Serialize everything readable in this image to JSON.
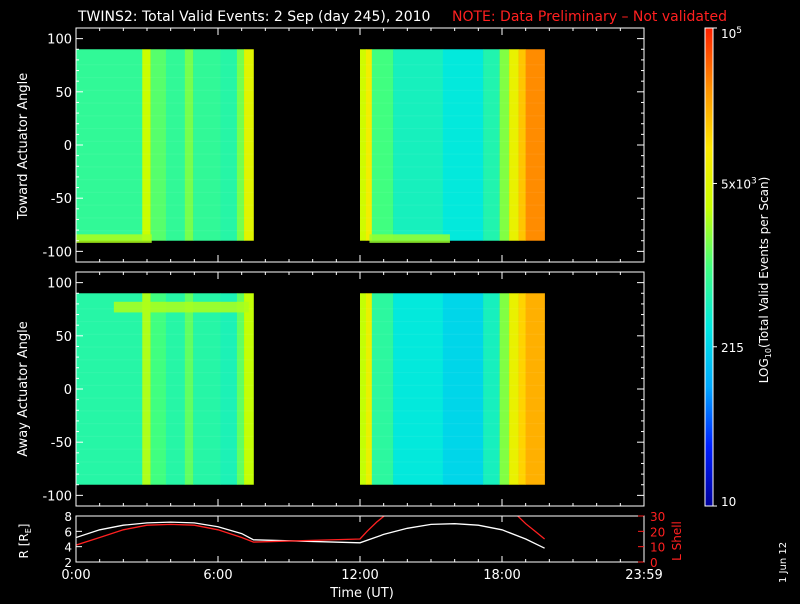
{
  "title": {
    "main": "TWINS2: Total Valid Events:  2 Sep (day 245), 2010",
    "note": "NOTE: Data Preliminary – Not validated",
    "note_color": "#ff2020"
  },
  "side_date": "1 Jun 12",
  "chart_data": [
    {
      "id": "toward",
      "type": "heatmap",
      "ylabel": "Toward Actuator Angle",
      "ylim": [
        -110,
        110
      ],
      "yticks": [
        -100,
        -50,
        0,
        50,
        100
      ],
      "xlim_hours": [
        0,
        24
      ],
      "data_y": [
        -90,
        90
      ],
      "data_blocks": [
        [
          0,
          7.5
        ],
        [
          12,
          19.8
        ]
      ],
      "columns": [
        {
          "t": [
            0,
            2.8
          ],
          "level": 0.47
        },
        {
          "t": [
            2.8,
            3.15
          ],
          "level": 0.63
        },
        {
          "t": [
            3.15,
            3.8
          ],
          "level": 0.52
        },
        {
          "t": [
            3.8,
            4.6
          ],
          "level": 0.47
        },
        {
          "t": [
            4.6,
            4.95
          ],
          "level": 0.55
        },
        {
          "t": [
            4.95,
            6.1
          ],
          "level": 0.47
        },
        {
          "t": [
            6.1,
            6.8
          ],
          "level": 0.45
        },
        {
          "t": [
            6.8,
            7.1
          ],
          "level": 0.55
        },
        {
          "t": [
            7.1,
            7.5
          ],
          "level": 0.68
        },
        {
          "t": [
            12,
            12.25
          ],
          "level": 0.64
        },
        {
          "t": [
            12.25,
            12.5
          ],
          "level": 0.72
        },
        {
          "t": [
            12.5,
            13.4
          ],
          "level": 0.5
        },
        {
          "t": [
            13.4,
            15.5
          ],
          "level": 0.42
        },
        {
          "t": [
            15.5,
            17.2
          ],
          "level": 0.38
        },
        {
          "t": [
            17.2,
            17.9
          ],
          "level": 0.44
        },
        {
          "t": [
            17.9,
            18.3
          ],
          "level": 0.56
        },
        {
          "t": [
            18.3,
            18.7
          ],
          "level": 0.7
        },
        {
          "t": [
            18.7,
            19.0
          ],
          "level": 0.8
        },
        {
          "t": [
            19.0,
            19.8
          ],
          "level": 0.88
        }
      ],
      "bands": [
        {
          "t": [
            0,
            3.2
          ],
          "y": [
            -92,
            -84
          ],
          "level": 0.6
        },
        {
          "t": [
            12.4,
            15.8
          ],
          "y": [
            -92,
            -84
          ],
          "level": 0.58
        }
      ]
    },
    {
      "id": "away",
      "type": "heatmap",
      "ylabel": "Away Actuator Angle",
      "ylim": [
        -110,
        110
      ],
      "yticks": [
        -100,
        -50,
        0,
        50,
        100
      ],
      "xlim_hours": [
        0,
        24
      ],
      "data_y": [
        -90,
        90
      ],
      "data_blocks": [
        [
          0,
          7.5
        ],
        [
          12,
          19.8
        ]
      ],
      "columns": [
        {
          "t": [
            0,
            2.8
          ],
          "level": 0.45
        },
        {
          "t": [
            2.8,
            3.15
          ],
          "level": 0.6
        },
        {
          "t": [
            3.15,
            3.8
          ],
          "level": 0.5
        },
        {
          "t": [
            3.8,
            4.6
          ],
          "level": 0.45
        },
        {
          "t": [
            4.6,
            4.95
          ],
          "level": 0.53
        },
        {
          "t": [
            4.95,
            6.1
          ],
          "level": 0.45
        },
        {
          "t": [
            6.1,
            6.8
          ],
          "level": 0.43
        },
        {
          "t": [
            6.8,
            7.1
          ],
          "level": 0.53
        },
        {
          "t": [
            7.1,
            7.5
          ],
          "level": 0.62
        },
        {
          "t": [
            12,
            12.25
          ],
          "level": 0.62
        },
        {
          "t": [
            12.25,
            12.5
          ],
          "level": 0.7
        },
        {
          "t": [
            12.5,
            13.4
          ],
          "level": 0.46
        },
        {
          "t": [
            13.4,
            15.5
          ],
          "level": 0.38
        },
        {
          "t": [
            15.5,
            17.2
          ],
          "level": 0.34
        },
        {
          "t": [
            17.2,
            17.9
          ],
          "level": 0.42
        },
        {
          "t": [
            17.9,
            18.3
          ],
          "level": 0.56
        },
        {
          "t": [
            18.3,
            18.7
          ],
          "level": 0.7
        },
        {
          "t": [
            18.7,
            19.0
          ],
          "level": 0.78
        },
        {
          "t": [
            19.0,
            19.8
          ],
          "level": 0.83
        }
      ],
      "bands": [
        {
          "t": [
            1.6,
            7.3
          ],
          "y": [
            72,
            82
          ],
          "level": 0.6
        }
      ]
    },
    {
      "id": "orbit",
      "type": "line",
      "ylabel_left": "R [R",
      "ylabel_left_sub": "E",
      "ylabel_left_end": "]",
      "ylabel_right": "L Shell",
      "ylim_left": [
        2,
        8
      ],
      "yticks_left": [
        2,
        4,
        6,
        8
      ],
      "ylim_right": [
        0,
        30
      ],
      "yticks_right": [
        0,
        10,
        20,
        30
      ],
      "xlabel": "Time (UT)",
      "xticks": [
        {
          "t": 0,
          "label": "0:00"
        },
        {
          "t": 6,
          "label": "6:00"
        },
        {
          "t": 12,
          "label": "12:00"
        },
        {
          "t": 18,
          "label": "18:00"
        },
        {
          "t": 24,
          "label": "23:59"
        }
      ],
      "series": [
        {
          "axis": "left",
          "color": "#ffffff",
          "x": [
            0,
            1,
            2,
            3,
            4,
            5,
            6,
            7,
            7.5,
            12,
            13,
            14,
            15,
            16,
            17,
            18,
            19,
            19.8
          ],
          "y": [
            5.2,
            6.2,
            6.8,
            7.1,
            7.2,
            7.1,
            6.6,
            5.7,
            4.9,
            4.5,
            5.6,
            6.4,
            6.9,
            7.0,
            6.8,
            6.2,
            5.0,
            3.8
          ]
        },
        {
          "axis": "right",
          "color": "#ff2020",
          "x": [
            0,
            1,
            2,
            3,
            4,
            5,
            6,
            7,
            7.5,
            12,
            12.3,
            12.7,
            13.1
          ],
          "y": [
            11,
            16,
            21,
            24,
            24.5,
            24,
            21,
            16,
            13,
            15,
            20,
            26,
            31
          ]
        },
        {
          "axis": "right",
          "color": "#ff2020",
          "x": [
            18.6,
            19.0,
            19.4,
            19.8
          ],
          "y": [
            31,
            25,
            20,
            15
          ]
        }
      ]
    }
  ],
  "colorbar": {
    "scale": "log",
    "range": [
      10,
      100000
    ],
    "ticks": [
      {
        "value": 10,
        "label": "10"
      },
      {
        "value": 215,
        "label": "215"
      },
      {
        "value": 5000,
        "label": "5x10",
        "sup": "3"
      },
      {
        "value": 100000,
        "label": "10",
        "sup": "5"
      }
    ],
    "label_prefix": "LOG",
    "label_sub": "10",
    "label_rest": "(Total Valid  Events per Scan)",
    "stops": [
      "#00009a",
      "#0020ff",
      "#00a8ff",
      "#00e8e0",
      "#40ff80",
      "#c8ff00",
      "#ffe800",
      "#ff9000",
      "#ff2000"
    ]
  }
}
